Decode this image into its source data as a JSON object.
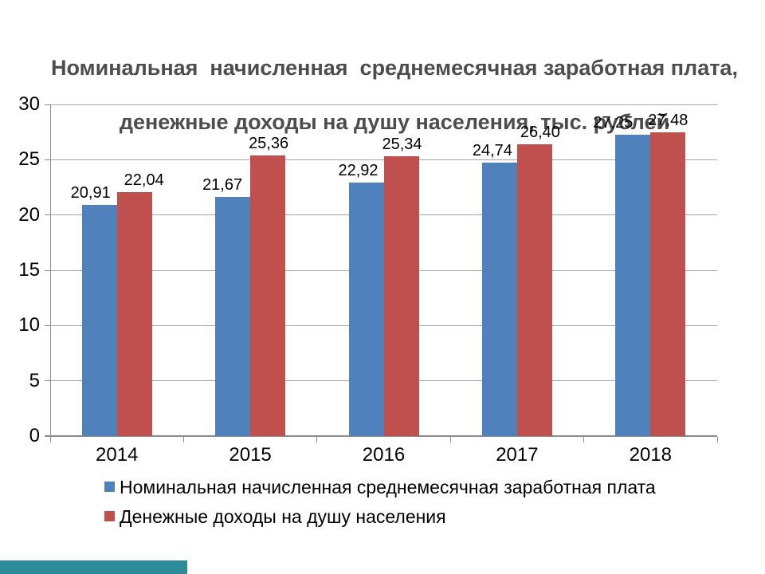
{
  "slide": {
    "title_line1": "Номинальная  начисленная  среднемесячная заработная плата,",
    "title_line2": "денежные доходы на душу населения, тыс. рублей"
  },
  "chart_data": {
    "type": "bar",
    "title": "Номинальная начисленная среднемесячная заработная плата, денежные доходы на душу населения, тыс. рублей",
    "categories": [
      "2014",
      "2015",
      "2016",
      "2017",
      "2018"
    ],
    "series": [
      {
        "name": "Номинальная начисленная среднемесячная заработная плата",
        "color": "#4F81BD",
        "values": [
          20.91,
          21.67,
          22.92,
          24.74,
          27.25
        ],
        "labels": [
          "20,91",
          "21,67",
          "22,92",
          "24,74",
          "27,25"
        ]
      },
      {
        "name": "Денежные доходы на душу населения",
        "color": "#C0504D",
        "values": [
          22.04,
          25.36,
          25.34,
          26.4,
          27.48
        ],
        "labels": [
          "22,04",
          "25,36",
          "25,34",
          "26,40",
          "27,48"
        ]
      }
    ],
    "xlabel": "",
    "ylabel": "",
    "ylim": [
      0,
      30
    ],
    "yticks": [
      0,
      5,
      10,
      15,
      20,
      25,
      30
    ],
    "grid": true,
    "legend_position": "bottom",
    "number_format": "comma-decimal"
  },
  "colors": {
    "title_text": "#4D4D4D",
    "gridline": "#A6A6A6",
    "axis": "#8C8C8C",
    "label_text": "#000000",
    "footer_accent": "#2E8B9A"
  }
}
